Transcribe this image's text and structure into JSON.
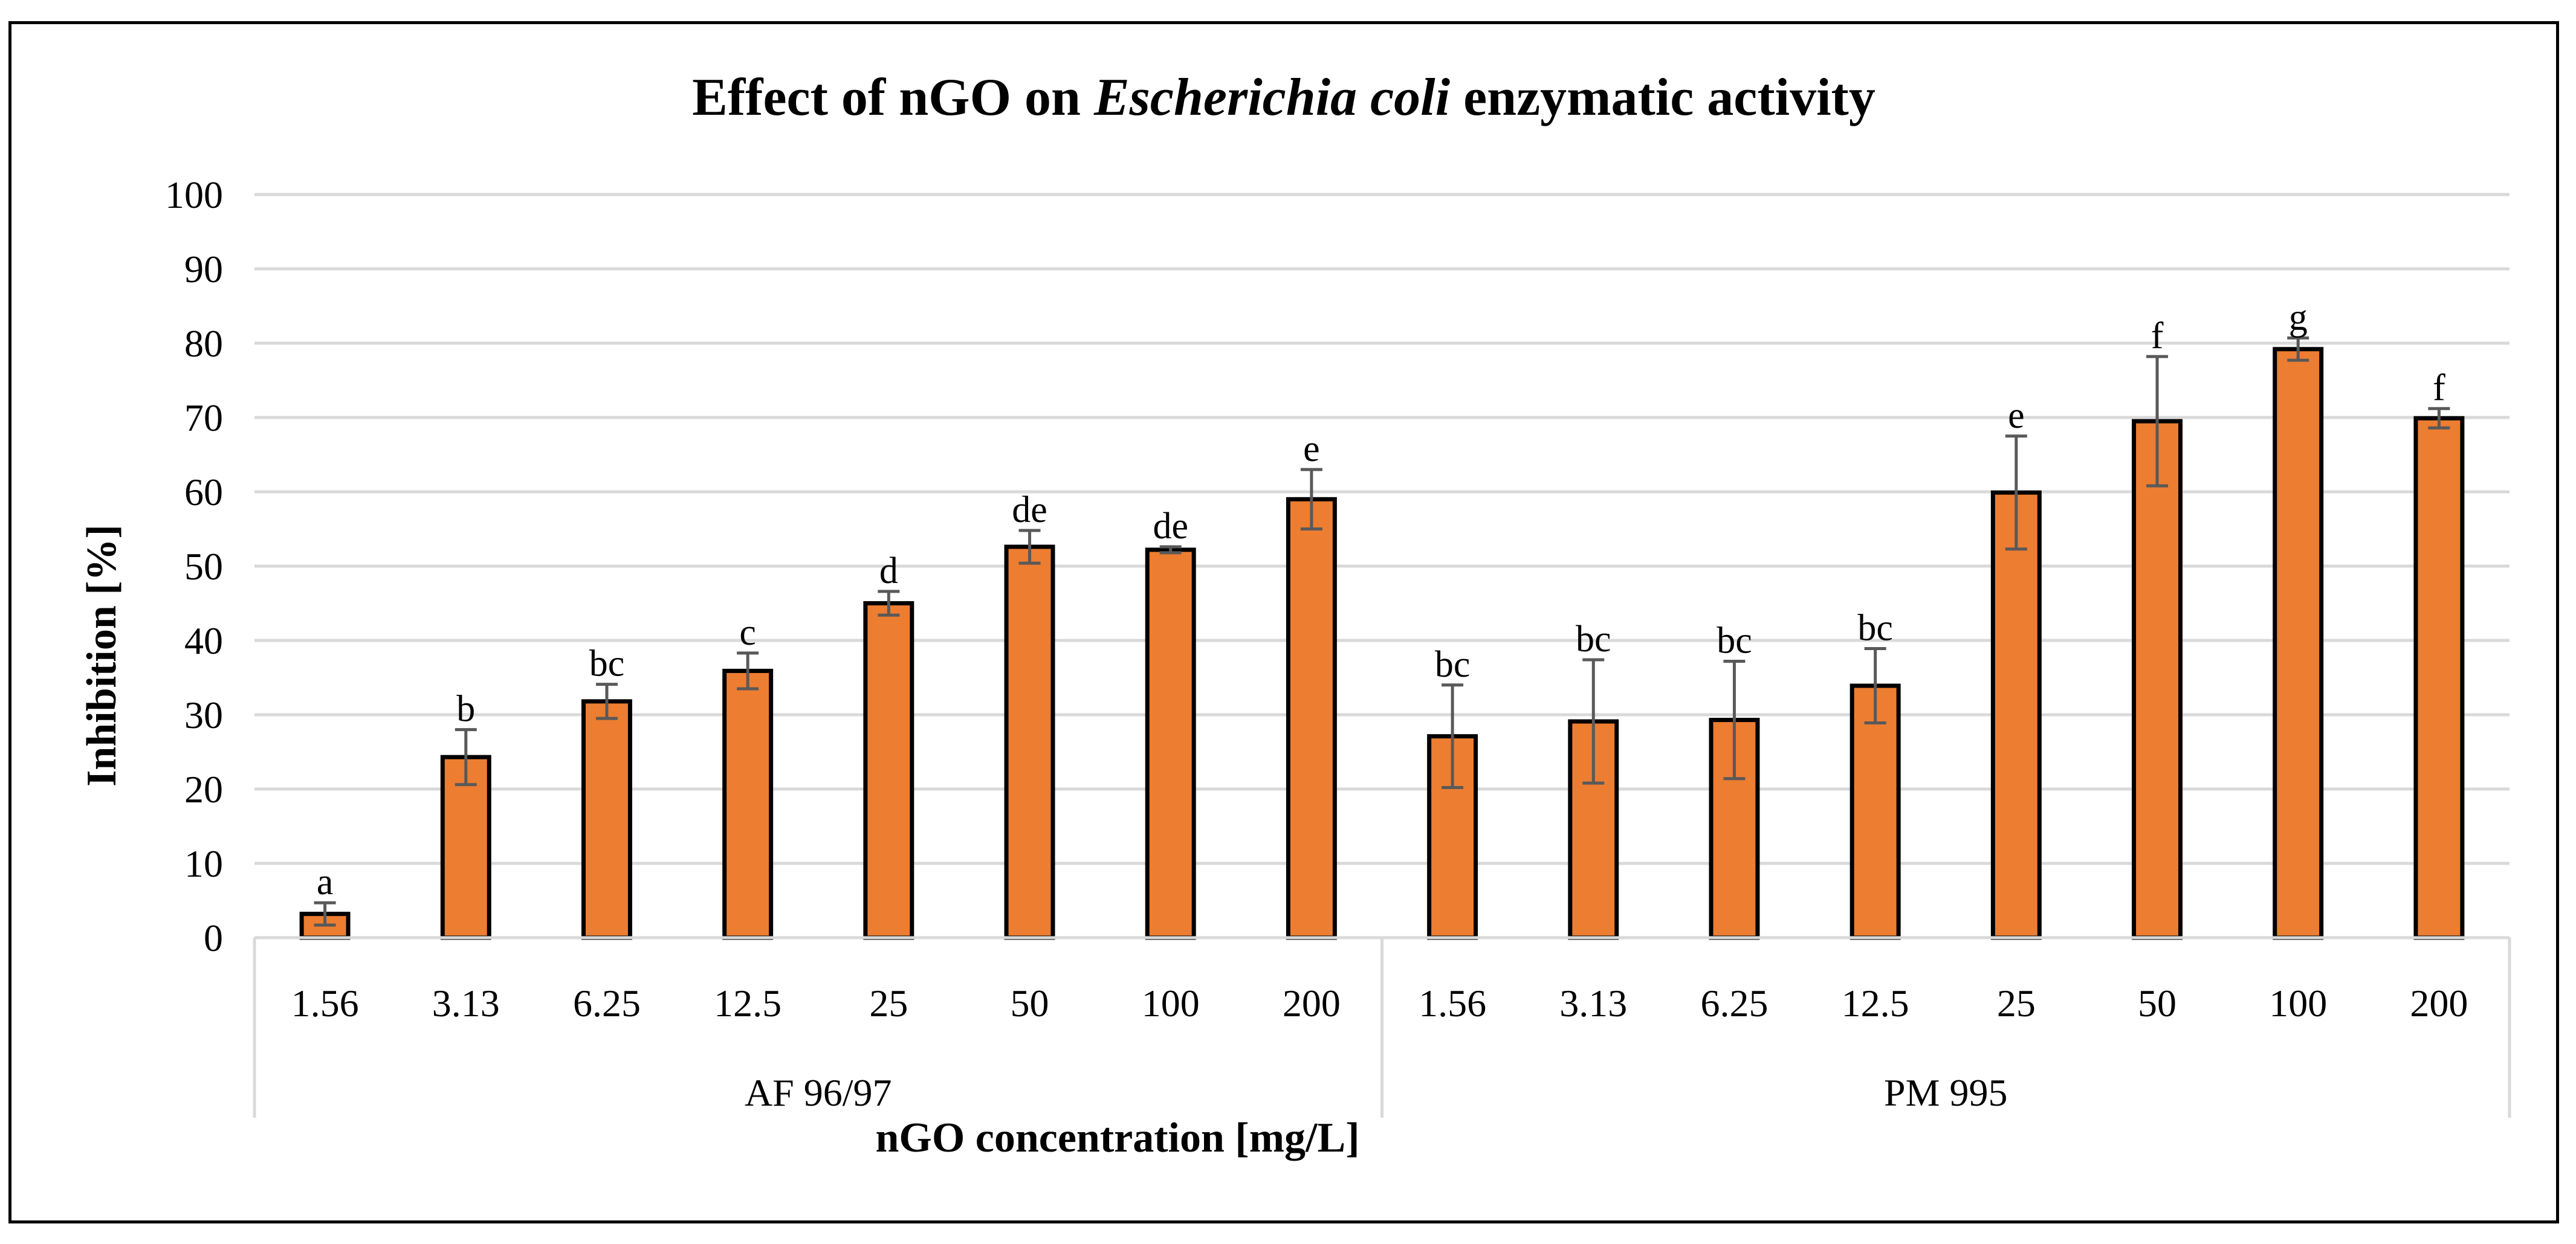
{
  "chart_data": {
    "type": "bar",
    "title_parts": [
      "Effect of nGO on ",
      "Escherichia coli",
      " enzymatic activity"
    ],
    "xlabel": "nGO concentration [mg/L]",
    "ylabel": "Inhibition [%]",
    "ylim": [
      0,
      100
    ],
    "yticks": [
      "0",
      "10",
      "20",
      "30",
      "40",
      "50",
      "60",
      "70",
      "80",
      "90",
      "100"
    ],
    "grid": true,
    "bar_color": "#ED7D31",
    "groups": [
      {
        "name": "AF 96/97",
        "categories": [
          "1.56",
          "3.13",
          "6.25",
          "12.5",
          "25",
          "50",
          "100",
          "200"
        ],
        "values": [
          3.2,
          24.3,
          31.8,
          35.9,
          45.0,
          52.6,
          52.2,
          59.0
        ],
        "errors": [
          1.5,
          3.7,
          2.3,
          2.4,
          1.6,
          2.2,
          0.4,
          4.0
        ],
        "letters": [
          "a",
          "b",
          "bc",
          "c",
          "d",
          "de",
          "de",
          "e"
        ]
      },
      {
        "name": "PM 995",
        "categories": [
          "1.56",
          "3.13",
          "6.25",
          "12.5",
          "25",
          "50",
          "100",
          "200"
        ],
        "values": [
          27.1,
          29.1,
          29.3,
          33.9,
          59.9,
          69.5,
          79.2,
          69.9
        ],
        "errors": [
          6.9,
          8.3,
          7.9,
          5.0,
          7.6,
          8.7,
          1.5,
          1.3
        ],
        "letters": [
          "bc",
          "bc",
          "bc",
          "bc",
          "e",
          "f",
          "g",
          "f"
        ]
      }
    ]
  }
}
